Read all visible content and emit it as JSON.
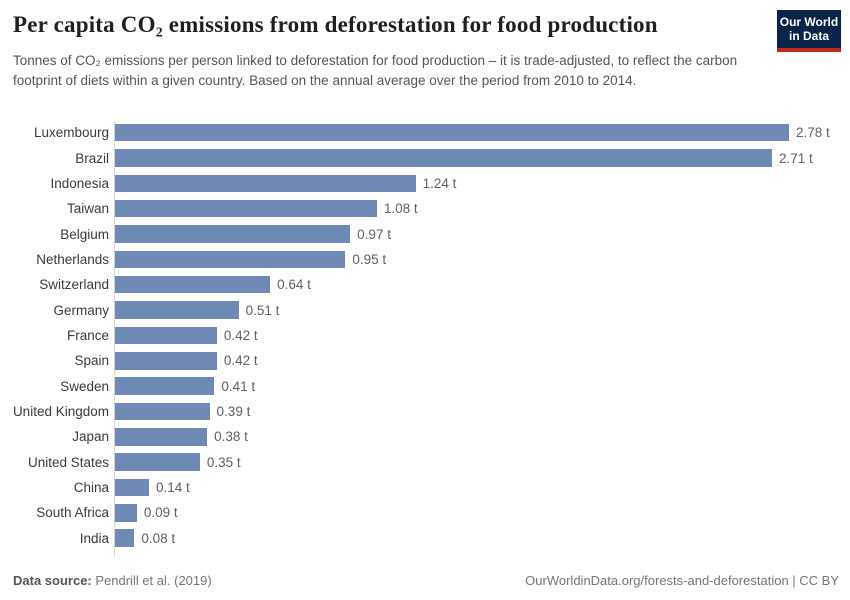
{
  "header": {
    "title": "Per capita CO₂ emissions from deforestation for food production",
    "subtitle": "Tonnes of CO₂ emissions per person linked to deforestation for food production – it is trade-adjusted, to reflect the carbon footprint of diets within a given country. Based on the annual average over the period from 2010 to 2014.",
    "logo": {
      "line1": "Our World",
      "line2": "in Data"
    }
  },
  "chart_data": {
    "type": "bar",
    "orientation": "horizontal",
    "title": "Per capita CO₂ emissions from deforestation for food production",
    "unit": "tonnes of CO₂ per person",
    "xlim": [
      0,
      2.78
    ],
    "grid": false,
    "legend": "none",
    "categories": [
      "Luxembourg",
      "Brazil",
      "Indonesia",
      "Taiwan",
      "Belgium",
      "Netherlands",
      "Switzerland",
      "Germany",
      "France",
      "Spain",
      "Sweden",
      "United Kingdom",
      "Japan",
      "United States",
      "China",
      "South Africa",
      "India"
    ],
    "values": [
      2.78,
      2.71,
      1.24,
      1.08,
      0.97,
      0.95,
      0.64,
      0.51,
      0.42,
      0.42,
      0.41,
      0.39,
      0.38,
      0.35,
      0.14,
      0.09,
      0.08
    ],
    "value_labels": [
      "2.78 t",
      "2.71 t",
      "1.24 t",
      "1.08 t",
      "0.97 t",
      "0.95 t",
      "0.64 t",
      "0.51 t",
      "0.42 t",
      "0.42 t",
      "0.41 t",
      "0.39 t",
      "0.38 t",
      "0.35 t",
      "0.14 t",
      "0.09 t",
      "0.08 t"
    ]
  },
  "footer": {
    "datasource_label": "Data source:",
    "datasource_value": " Pendrill et al. (2019)",
    "credit": "OurWorldinData.org/forests-and-deforestation | CC BY"
  },
  "colors": {
    "bar": "#6e89b4",
    "axis_line": "#d4d4d4",
    "logo_bg": "#082448",
    "logo_red": "#c5291d"
  }
}
